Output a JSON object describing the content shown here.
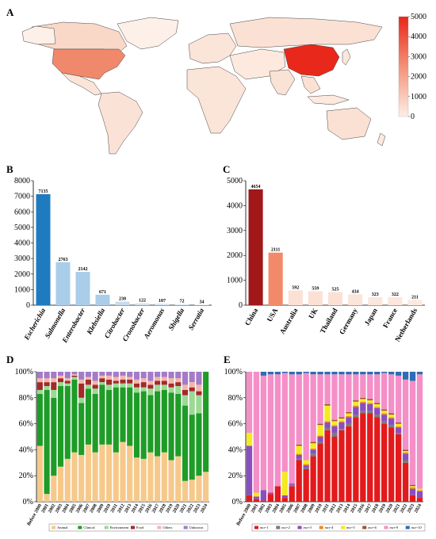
{
  "chart_data": [
    {
      "panel": "A",
      "type": "map",
      "colorbar": {
        "min": 0,
        "max": 5000,
        "ticks": [
          0,
          1000,
          2000,
          3000,
          4000,
          5000
        ]
      },
      "colors": {
        "low": "#fbe4d8",
        "mid": "#f1876a",
        "high": "#e8281b"
      }
    },
    {
      "panel": "B",
      "type": "bar",
      "categories": [
        "Escherichia",
        "Salmonella",
        "Enterobacter",
        "Klebsiella",
        "Citrobacter",
        "Cronobacter",
        "Aeromonas",
        "Shigella",
        "Serratia"
      ],
      "values": [
        7135,
        2763,
        2142,
        671,
        230,
        122,
        107,
        72,
        34
      ],
      "data_labels": [
        "7135",
        "2763",
        "2142",
        "671",
        "230",
        "122",
        "107",
        "72",
        "34"
      ],
      "ylim": [
        0,
        8000
      ],
      "yticks": [
        "0",
        "1000",
        "2000",
        "3000",
        "4000",
        "5000",
        "6000",
        "7000",
        "8000"
      ],
      "colors": [
        "#1f7bbf",
        "#aacde9",
        "#aacde9",
        "#aacde9",
        "#c7dcef",
        "#d3e4f3",
        "#dae8f5",
        "#dde9f5",
        "#dfeaf6"
      ]
    },
    {
      "panel": "C",
      "type": "bar",
      "categories": [
        "China",
        "USA",
        "Australia",
        "UK",
        "Thailand",
        "Germany",
        "Japan",
        "France",
        "Netherlands"
      ],
      "values": [
        4654,
        2111,
        592,
        559,
        525,
        434,
        323,
        322,
        211
      ],
      "data_labels": [
        "4654",
        "2111",
        "592",
        "559",
        "525",
        "434",
        "323",
        "322",
        "211"
      ],
      "ylim": [
        0,
        5000
      ],
      "yticks": [
        "0",
        "1000",
        "2000",
        "3000",
        "4000",
        "5000"
      ],
      "colors": [
        "#a01818",
        "#f28a69",
        "#fbe1d4",
        "#fbe1d4",
        "#fbe1d4",
        "#fbe4d8",
        "#fce7dc",
        "#fce7dc",
        "#fde9de"
      ]
    },
    {
      "panel": "D",
      "type": "stacked_bar",
      "categories": [
        "Before 2000",
        "2001",
        "2002",
        "2003",
        "2004",
        "2005",
        "2006",
        "2007",
        "2008",
        "2009",
        "2010",
        "2011",
        "2012",
        "2013",
        "2014",
        "2015",
        "2016",
        "2017",
        "2018",
        "2019",
        "2020",
        "2021",
        "2022",
        "2023",
        "2024"
      ],
      "ylim": [
        0,
        100
      ],
      "yticks": [
        "0%",
        "20%",
        "40%",
        "60%",
        "80%",
        "100%"
      ],
      "series": [
        {
          "name": "Animal",
          "color": "#f6c98b",
          "values": [
            43,
            6,
            20,
            27,
            33,
            38,
            36,
            44,
            38,
            44,
            44,
            38,
            46,
            43,
            34,
            33,
            38,
            35,
            38,
            32,
            35,
            16,
            17,
            20,
            23
          ]
        },
        {
          "name": "Clinical",
          "color": "#1f9c27",
          "values": [
            40,
            80,
            60,
            62,
            56,
            56,
            40,
            43,
            45,
            46,
            42,
            50,
            42,
            45,
            50,
            52,
            44,
            50,
            48,
            52,
            48,
            58,
            50,
            48,
            77
          ]
        },
        {
          "name": "Environment",
          "color": "#9bd995",
          "values": [
            3,
            3,
            6,
            3,
            2,
            2,
            4,
            3,
            4,
            2,
            4,
            3,
            3,
            3,
            4,
            3,
            5,
            5,
            4,
            4,
            6,
            8,
            18,
            14,
            0
          ]
        },
        {
          "name": "Food",
          "color": "#a32a2a",
          "values": [
            6,
            3,
            6,
            3,
            2,
            1,
            11,
            4,
            3,
            3,
            4,
            2,
            3,
            3,
            3,
            4,
            3,
            3,
            3,
            3,
            3,
            4,
            3,
            3,
            0
          ]
        },
        {
          "name": "Others",
          "color": "#f4b6aa",
          "values": [
            3,
            3,
            3,
            2,
            2,
            1,
            3,
            2,
            3,
            2,
            3,
            3,
            3,
            2,
            3,
            3,
            3,
            3,
            3,
            4,
            3,
            4,
            4,
            5,
            0
          ]
        },
        {
          "name": "Unknown",
          "color": "#a37bc7",
          "values": [
            5,
            5,
            5,
            3,
            5,
            2,
            6,
            4,
            7,
            3,
            3,
            4,
            3,
            4,
            6,
            5,
            7,
            4,
            4,
            5,
            5,
            10,
            8,
            10,
            0
          ]
        }
      ]
    },
    {
      "panel": "E",
      "type": "stacked_bar",
      "categories": [
        "Before 2000",
        "2001",
        "2002",
        "2003",
        "2004",
        "2005",
        "2006",
        "2007",
        "2008",
        "2009",
        "2010",
        "2011",
        "2012",
        "2013",
        "2014",
        "2015",
        "2016",
        "2017",
        "2018",
        "2019",
        "2020",
        "2021",
        "2022",
        "2023",
        "2024"
      ],
      "ylim": [
        0,
        100
      ],
      "yticks": [
        "0%",
        "20%",
        "40%",
        "60%",
        "80%",
        "100%"
      ],
      "series": [
        {
          "name": "mcr-1",
          "color": "#e31a1c",
          "values": [
            5,
            2,
            1,
            6,
            12,
            3,
            12,
            32,
            25,
            35,
            45,
            55,
            50,
            55,
            58,
            65,
            68,
            68,
            65,
            60,
            57,
            52,
            30,
            5,
            3
          ]
        },
        {
          "name": "mcr-2",
          "color": "#7a7a7a",
          "values": [
            0,
            0,
            0,
            0,
            0,
            0,
            1,
            1,
            1,
            2,
            1,
            2,
            3,
            1,
            2,
            2,
            2,
            2,
            2,
            2,
            2,
            1,
            2,
            0,
            0
          ]
        },
        {
          "name": "mcr-3",
          "color": "#8a4ec0",
          "values": [
            38,
            2,
            8,
            1,
            0,
            2,
            1,
            3,
            2,
            3,
            4,
            4,
            5,
            5,
            5,
            6,
            6,
            5,
            5,
            5,
            5,
            4,
            5,
            5,
            5
          ]
        },
        {
          "name": "mcr-4",
          "color": "#f08c1e",
          "values": [
            0,
            0,
            0,
            0,
            0,
            0,
            0,
            1,
            1,
            1,
            1,
            1,
            1,
            1,
            1,
            1,
            1,
            1,
            1,
            1,
            1,
            1,
            1,
            1,
            1
          ]
        },
        {
          "name": "mcr-5",
          "color": "#f4ea20",
          "values": [
            10,
            3,
            0,
            0,
            0,
            18,
            0,
            6,
            3,
            4,
            8,
            12,
            3,
            2,
            2,
            3,
            2,
            2,
            2,
            2,
            2,
            2,
            1,
            1,
            1
          ]
        },
        {
          "name": "mcr-6",
          "color": "#a0522d",
          "values": [
            0,
            0,
            0,
            0,
            0,
            0,
            0,
            1,
            0,
            1,
            1,
            1,
            1,
            1,
            1,
            1,
            1,
            1,
            1,
            1,
            1,
            1,
            1,
            1,
            0
          ]
        },
        {
          "name": "mcr-9",
          "color": "#f48fc8",
          "values": [
            47,
            93,
            88,
            91,
            86,
            76,
            84,
            54,
            67,
            52,
            38,
            23,
            35,
            33,
            29,
            20,
            18,
            19,
            22,
            28,
            30,
            36,
            54,
            80,
            88
          ]
        },
        {
          "name": "mcr-10",
          "color": "#2f6cb4",
          "values": [
            0,
            0,
            3,
            2,
            2,
            1,
            2,
            2,
            1,
            2,
            2,
            2,
            2,
            2,
            2,
            2,
            2,
            2,
            2,
            1,
            2,
            3,
            6,
            7,
            2
          ]
        }
      ]
    }
  ]
}
